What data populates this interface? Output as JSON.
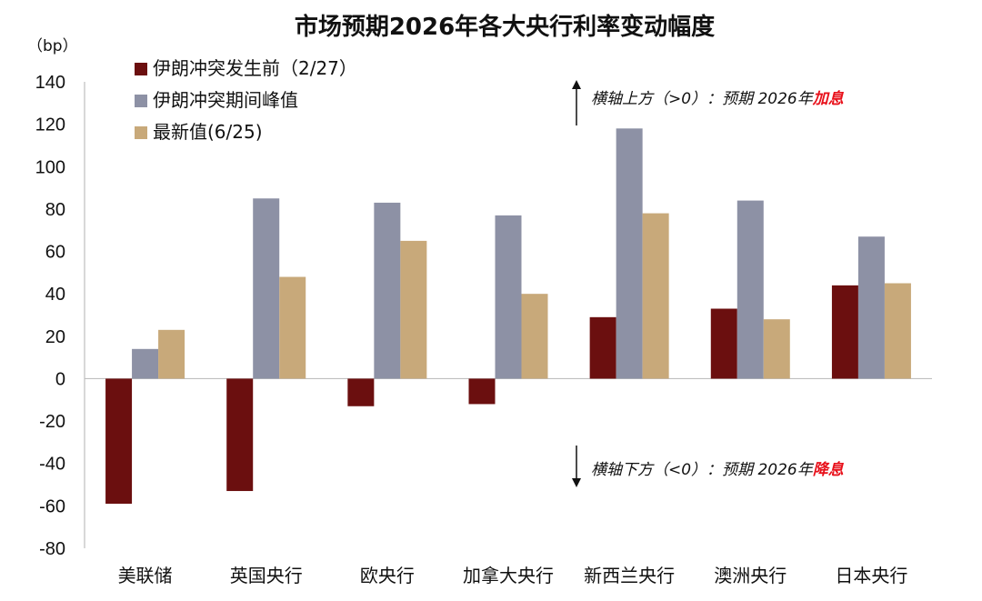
{
  "chart_data": {
    "type": "bar",
    "title": "市场预期2026年各大央行利率变动幅度",
    "unit_label": "（bp）",
    "ylim": [
      -80,
      140
    ],
    "yticks": [
      140,
      120,
      100,
      80,
      60,
      40,
      20,
      0,
      -20,
      -40,
      -60,
      -80
    ],
    "categories": [
      "美联储",
      "英国央行",
      "欧央行",
      "加拿大央行",
      "新西兰央行",
      "澳洲央行",
      "日本央行"
    ],
    "series": [
      {
        "name": "伊朗冲突发生前（2/27）",
        "color": "#6b0f0f",
        "values": [
          -59,
          -53,
          -13,
          -12,
          29,
          33,
          44
        ]
      },
      {
        "name": "伊朗冲突期间峰值",
        "color": "#8d91a5",
        "values": [
          14,
          85,
          83,
          77,
          118,
          84,
          67
        ]
      },
      {
        "name": "最新值(6/25)",
        "color": "#c8a97a",
        "values": [
          23,
          48,
          65,
          40,
          78,
          28,
          45
        ]
      }
    ],
    "legend_position": "top-left",
    "grid": false,
    "annotations": {
      "up": {
        "text": "横轴上方（>0）：预期 2026年",
        "highlight": "加息"
      },
      "down": {
        "text": "横轴下方（<0）：预期 2026年",
        "highlight": "降息"
      }
    }
  }
}
